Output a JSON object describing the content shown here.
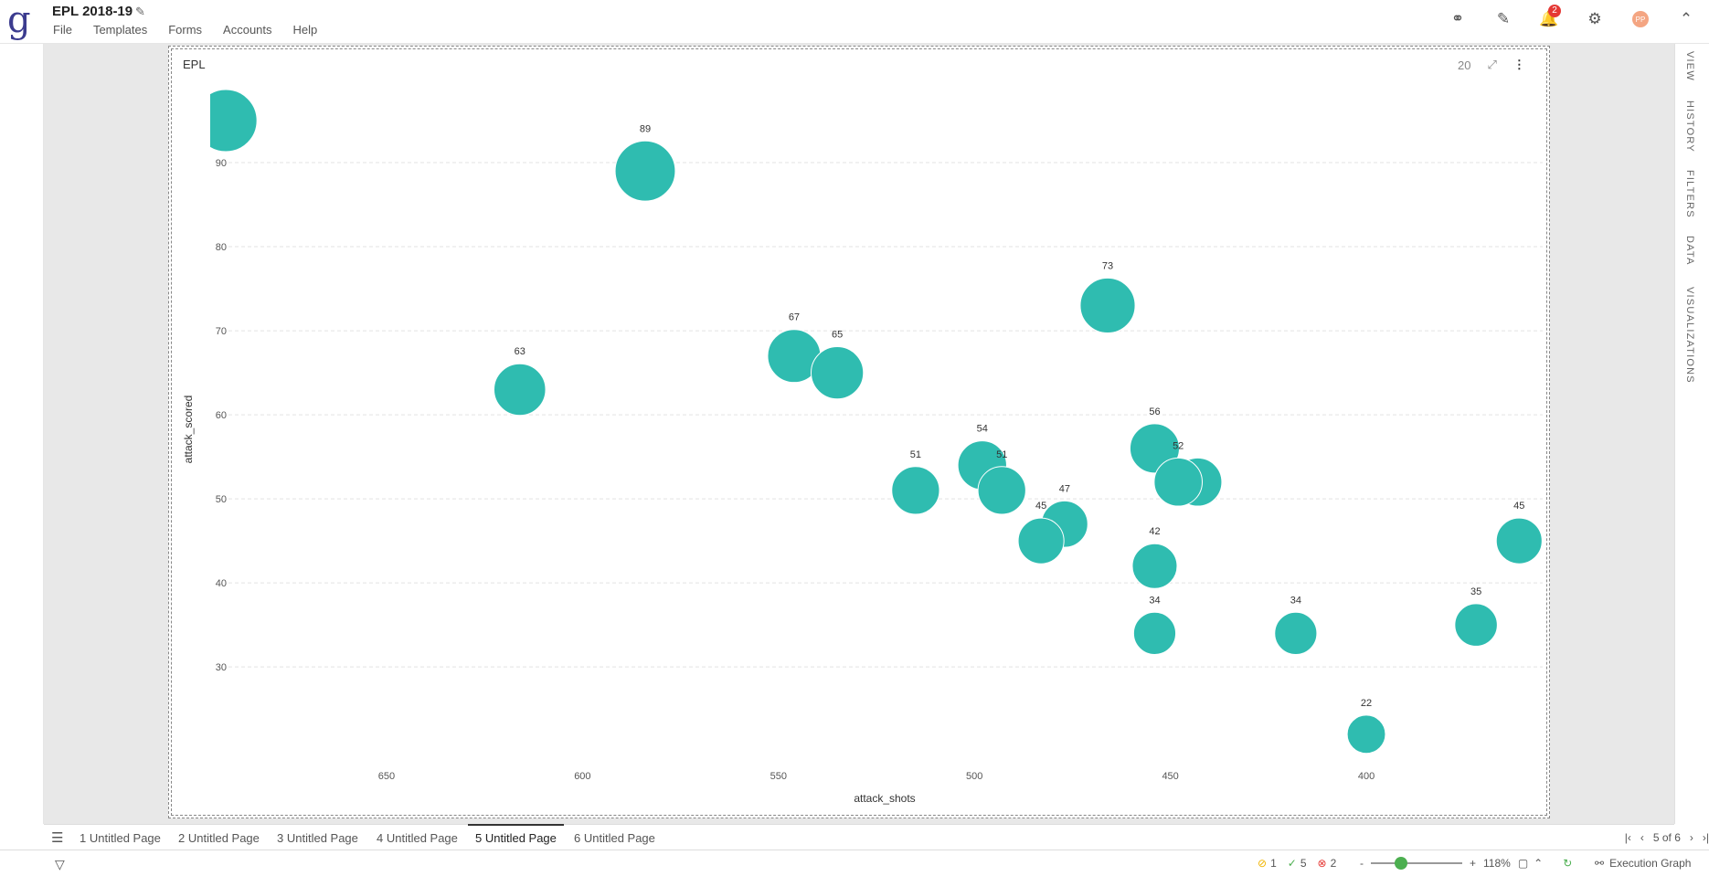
{
  "app": {
    "logo": "g",
    "title": "EPL 2018-19",
    "menu": [
      "File",
      "Templates",
      "Forms",
      "Accounts",
      "Help"
    ],
    "notification_count": "2",
    "avatar_initials": "PP"
  },
  "right_rail": [
    "VIEW",
    "HISTORY",
    "FILTERS",
    "DATA",
    "VISUALIZATIONS"
  ],
  "panel": {
    "title": "EPL",
    "count": "20"
  },
  "chart_data": {
    "type": "scatter",
    "title": "EPL",
    "xlabel": "attack_shots",
    "ylabel": "attack_scored",
    "x_reversed": true,
    "xlim": [
      695,
      355
    ],
    "ylim": [
      18.5,
      100
    ],
    "xticks": [
      650,
      600,
      550,
      500,
      450,
      400
    ],
    "yticks": [
      30,
      40,
      50,
      60,
      70,
      80,
      90
    ],
    "grid": "horizontal",
    "color": "#2fbcb0",
    "points": [
      {
        "x": 691,
        "y": 95,
        "label": ""
      },
      {
        "x": 584,
        "y": 89,
        "label": "89"
      },
      {
        "x": 466,
        "y": 73,
        "label": "73"
      },
      {
        "x": 546,
        "y": 67,
        "label": "67"
      },
      {
        "x": 535,
        "y": 65,
        "label": "65"
      },
      {
        "x": 616,
        "y": 63,
        "label": "63"
      },
      {
        "x": 454,
        "y": 56,
        "label": "56"
      },
      {
        "x": 498,
        "y": 54,
        "label": "54"
      },
      {
        "x": 443,
        "y": 52,
        "label": ""
      },
      {
        "x": 448,
        "y": 52,
        "label": "52"
      },
      {
        "x": 493,
        "y": 51,
        "label": "51"
      },
      {
        "x": 515,
        "y": 51,
        "label": "51"
      },
      {
        "x": 477,
        "y": 47,
        "label": "47"
      },
      {
        "x": 483,
        "y": 45,
        "label": "45"
      },
      {
        "x": 361,
        "y": 45,
        "label": "45"
      },
      {
        "x": 454,
        "y": 42,
        "label": "42"
      },
      {
        "x": 372,
        "y": 35,
        "label": "35"
      },
      {
        "x": 454,
        "y": 34,
        "label": "34"
      },
      {
        "x": 418,
        "y": 34,
        "label": "34"
      },
      {
        "x": 400,
        "y": 22,
        "label": "22"
      }
    ]
  },
  "pages": [
    "1 Untitled Page",
    "2 Untitled Page",
    "3 Untitled Page",
    "4 Untitled Page",
    "5 Untitled Page",
    "6 Untitled Page"
  ],
  "active_page": 4,
  "pager_text": "5 of 6",
  "status": {
    "warnings": "1",
    "success": "5",
    "errors": "2",
    "zoom": "118%",
    "zoom_minus": "-",
    "zoom_plus": "+",
    "execution_graph": "Execution Graph"
  }
}
